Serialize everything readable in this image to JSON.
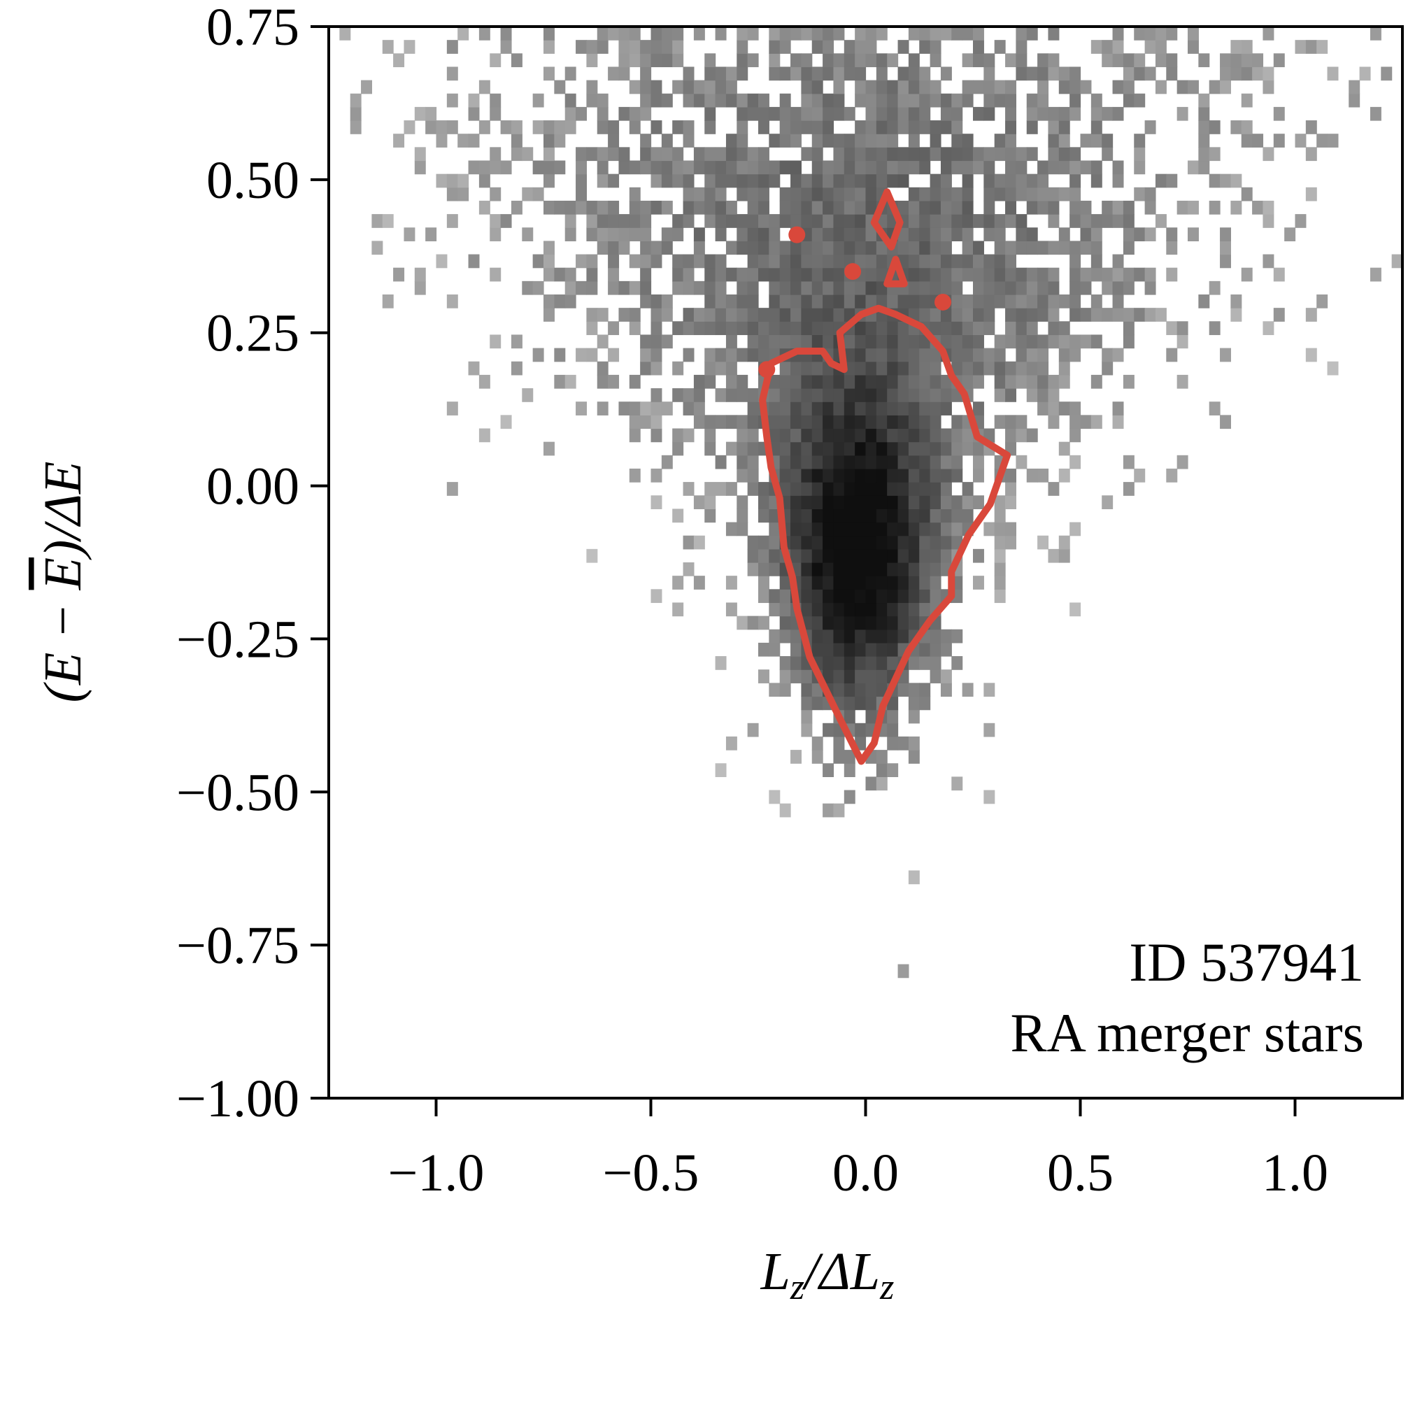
{
  "chart_data": {
    "type": "heatmap",
    "title": "",
    "xlabel_parts": [
      "L",
      "z",
      "/ΔL",
      "z"
    ],
    "ylabel_parts": [
      "(E − ",
      "E",
      ")/ΔE"
    ],
    "xlim": [
      -1.25,
      1.25
    ],
    "ylim": [
      -1.0,
      0.75
    ],
    "xticks": [
      -1.0,
      -0.5,
      0.0,
      0.5,
      1.0
    ],
    "xtick_labels": [
      "−1.0",
      "−0.5",
      "0.0",
      "0.5",
      "1.0"
    ],
    "yticks": [
      0.75,
      0.5,
      0.25,
      0.0,
      -0.25,
      -0.5,
      -0.75,
      -1.0
    ],
    "ytick_labels": [
      "0.75",
      "0.50",
      "0.25",
      "0.00",
      "−0.25",
      "−0.50",
      "−0.75",
      "−1.00"
    ],
    "colormap": "greys",
    "contour_color": "#d9483b",
    "annotations": [
      "ID 537941",
      "RA merger stars"
    ],
    "density_model": {
      "core": {
        "x": -0.02,
        "y": -0.12,
        "sx": 0.12,
        "sy": 0.18
      },
      "upper_fan": {
        "y_center": 0.35,
        "spread_per_y": 0.55
      }
    },
    "contours": [
      {
        "name": "main-contour",
        "points": [
          [
            -0.01,
            -0.45
          ],
          [
            -0.06,
            -0.38
          ],
          [
            -0.13,
            -0.28
          ],
          [
            -0.16,
            -0.2
          ],
          [
            -0.17,
            -0.15
          ],
          [
            -0.19,
            -0.1
          ],
          [
            -0.2,
            -0.02
          ],
          [
            -0.22,
            0.03
          ],
          [
            -0.23,
            0.08
          ],
          [
            -0.24,
            0.14
          ],
          [
            -0.22,
            0.2
          ],
          [
            -0.16,
            0.22
          ],
          [
            -0.1,
            0.22
          ],
          [
            -0.08,
            0.2
          ],
          [
            -0.05,
            0.19
          ],
          [
            -0.06,
            0.25
          ],
          [
            -0.01,
            0.28
          ],
          [
            0.03,
            0.29
          ],
          [
            0.07,
            0.28
          ],
          [
            0.13,
            0.26
          ],
          [
            0.18,
            0.22
          ],
          [
            0.2,
            0.18
          ],
          [
            0.23,
            0.15
          ],
          [
            0.26,
            0.08
          ],
          [
            0.33,
            0.05
          ],
          [
            0.29,
            -0.03
          ],
          [
            0.24,
            -0.08
          ],
          [
            0.2,
            -0.14
          ],
          [
            0.2,
            -0.18
          ],
          [
            0.15,
            -0.22
          ],
          [
            0.1,
            -0.27
          ],
          [
            0.04,
            -0.36
          ],
          [
            0.02,
            -0.42
          ]
        ]
      },
      {
        "name": "upper-contour",
        "points": [
          [
            0.05,
            0.48
          ],
          [
            0.02,
            0.43
          ],
          [
            0.06,
            0.39
          ],
          [
            0.08,
            0.43
          ]
        ]
      },
      {
        "name": "small-contour",
        "points": [
          [
            0.07,
            0.37
          ],
          [
            0.05,
            0.33
          ],
          [
            0.09,
            0.33
          ]
        ]
      }
    ],
    "blobs": [
      [
        -0.16,
        0.41
      ],
      [
        -0.03,
        0.35
      ],
      [
        -0.23,
        0.19
      ],
      [
        0.18,
        0.3
      ]
    ]
  },
  "annotation": {
    "line1": "ID 537941",
    "line2": "RA merger stars"
  }
}
